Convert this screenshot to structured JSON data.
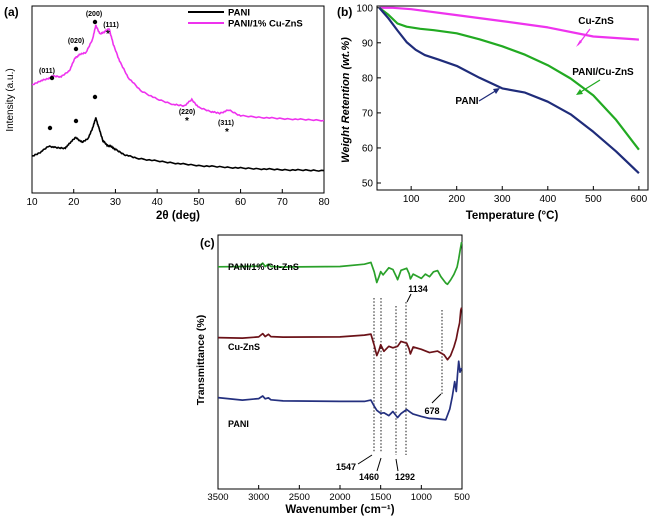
{
  "chart_data": [
    {
      "panel": "(a)",
      "type": "line",
      "title": "",
      "xlabel": "2θ (deg)",
      "ylabel": "Intensity (a.u.)",
      "xlim": [
        10,
        80
      ],
      "xticks": [
        "10",
        "20",
        "30",
        "40",
        "50",
        "60",
        "70",
        "80"
      ],
      "legend": [
        "PANI",
        "PANI/1% Cu-ZnS"
      ],
      "legend_position": "top-right",
      "colors": [
        "#000000",
        "#ee33ee"
      ],
      "series": [
        {
          "name": "PANI",
          "x": [
            10,
            12,
            14,
            16,
            18,
            19,
            20.5,
            22,
            23.5,
            24.5,
            25.3,
            26,
            27,
            28,
            29,
            30,
            32,
            35,
            40,
            45,
            50,
            55,
            60,
            65,
            70,
            75,
            80
          ],
          "y": [
            8.8,
            9.8,
            11.3,
            10.9,
            10.8,
            12.0,
            13.4,
            12.2,
            13.2,
            15.6,
            18.1,
            15.8,
            12.6,
            11.5,
            11.2,
            10.5,
            9.3,
            8.4,
            7.7,
            7.1,
            6.6,
            6.3,
            6.0,
            5.8,
            5.6,
            5.5,
            5.4
          ]
        },
        {
          "name": "PANI/1% Cu-ZnS",
          "x": [
            10,
            12,
            14,
            15,
            17,
            19,
            20.3,
            21.5,
            23,
            24.5,
            25.3,
            26.3,
            27.3,
            28.5,
            29.5,
            31,
            33,
            36,
            40,
            44,
            46.5,
            48.3,
            50,
            53,
            55,
            57.2,
            60,
            65,
            70,
            75,
            80
          ],
          "y": [
            26.0,
            27.0,
            27.6,
            28.2,
            28.0,
            29.5,
            32.5,
            33.4,
            33.9,
            37.0,
            40.4,
            38.3,
            38.8,
            39.6,
            35.8,
            31.8,
            27.9,
            24.7,
            22.6,
            21.3,
            21.0,
            22.5,
            20.6,
            19.6,
            19.2,
            20.0,
            18.6,
            18.2,
            17.9,
            17.7,
            17.5
          ]
        }
      ],
      "annotations": [
        "(011)",
        "(020)",
        "(200)",
        "(111)",
        "(220)",
        "(311)"
      ]
    },
    {
      "panel": "(b)",
      "type": "line",
      "title": "",
      "xlabel": "Temperature (°C)",
      "ylabel": "Weight Retention (wt.%)",
      "xlim": [
        25,
        620
      ],
      "ylim": [
        48,
        100.5
      ],
      "xticks": [
        "100",
        "200",
        "300",
        "400",
        "500",
        "600"
      ],
      "yticks": [
        "50",
        "60",
        "70",
        "80",
        "90",
        "100"
      ],
      "series": [
        {
          "name": "Cu-ZnS",
          "color": "#ee33ee",
          "x": [
            30,
            60,
            100,
            200,
            300,
            400,
            500,
            600
          ],
          "y": [
            100,
            100,
            99.6,
            97.9,
            96.2,
            94.4,
            91.8,
            90.9
          ]
        },
        {
          "name": "PANI/Cu-ZnS",
          "color": "#22aa22",
          "x": [
            30,
            50,
            70,
            90,
            120,
            150,
            200,
            250,
            300,
            350,
            400,
            450,
            500,
            550,
            600
          ],
          "y": [
            100,
            98,
            95.5,
            94.6,
            94.0,
            93.6,
            92.7,
            91.0,
            89.0,
            86.6,
            83.6,
            79.8,
            75.0,
            68.0,
            59.5
          ]
        },
        {
          "name": "PANI",
          "color": "#1f2c7a",
          "x": [
            30,
            50,
            70,
            90,
            110,
            130,
            160,
            200,
            250,
            300,
            350,
            400,
            450,
            500,
            550,
            600
          ],
          "y": [
            100,
            97,
            93.5,
            90.2,
            88.0,
            86.5,
            85.2,
            83.4,
            80.0,
            77.0,
            75.8,
            73.2,
            69.6,
            64.6,
            59.0,
            52.8
          ]
        }
      ],
      "annotations": [
        "Cu-ZnS",
        "PANI/Cu-ZnS",
        "PANI"
      ]
    },
    {
      "panel": "(c)",
      "type": "line",
      "title": "",
      "xlabel": "Wavenumber (cm⁻¹)",
      "ylabel": "Transmittance (%)",
      "xlim": [
        3500,
        500
      ],
      "xticks": [
        "3500",
        "3000",
        "2500",
        "2000",
        "1500",
        "1000",
        "500"
      ],
      "series": [
        {
          "name": "PANI/1% Cu-ZnS",
          "color": "#2aa12a",
          "x": [
            3500,
            3200,
            3000,
            2950,
            2920,
            2880,
            2850,
            2700,
            2000,
            1700,
            1620,
            1580,
            1547,
            1520,
            1500,
            1470,
            1400,
            1350,
            1300,
            1292,
            1250,
            1180,
            1150,
            1134,
            1100,
            1000,
            950,
            900,
            850,
            800,
            760,
            700,
            678,
            640,
            600,
            560,
            540,
            520,
            505
          ],
          "y": [
            87.5,
            87.6,
            87.7,
            88.9,
            87.6,
            88.5,
            87.6,
            87.4,
            87.6,
            88.5,
            89.2,
            85.5,
            81.3,
            83.6,
            85.6,
            84.3,
            87.1,
            86.4,
            83.1,
            82.4,
            86.1,
            86.9,
            84.8,
            82.7,
            84.6,
            82.9,
            84.6,
            83.6,
            85.5,
            86.0,
            83.6,
            81.1,
            80.6,
            82.3,
            84.5,
            87.4,
            90.6,
            94.6,
            97.2
          ]
        },
        {
          "name": "Cu-ZnS",
          "color": "#6b1218",
          "x": [
            3500,
            3200,
            3000,
            2950,
            2920,
            2880,
            2850,
            2700,
            2000,
            1700,
            1620,
            1580,
            1547,
            1520,
            1500,
            1460,
            1400,
            1350,
            1292,
            1250,
            1180,
            1150,
            1134,
            1100,
            1000,
            900,
            800,
            720,
            678,
            640,
            600,
            570,
            550,
            530,
            515,
            505
          ],
          "y": [
            59.6,
            59.4,
            59.9,
            61.2,
            60.0,
            60.9,
            60.0,
            59.8,
            59.9,
            60.6,
            61.0,
            56.6,
            52.5,
            54.6,
            56.8,
            54.2,
            56.2,
            55.6,
            56.2,
            58.1,
            57.4,
            55.1,
            53.2,
            55.9,
            55.0,
            53.7,
            54.3,
            52.8,
            50.9,
            52.5,
            55.9,
            59.1,
            62.4,
            65.4,
            70.4,
            71.4
          ]
        },
        {
          "name": "PANI",
          "color": "#24307f",
          "x": [
            3500,
            3200,
            3000,
            2950,
            2920,
            2880,
            2850,
            2700,
            2000,
            1700,
            1620,
            1580,
            1547,
            1500,
            1460,
            1400,
            1350,
            1292,
            1250,
            1180,
            1134,
            1100,
            1000,
            900,
            800,
            700,
            650,
            620,
            590,
            570,
            555,
            540,
            525,
            505
          ],
          "y": [
            36.0,
            35.0,
            35.6,
            36.6,
            35.5,
            35.9,
            35.1,
            34.7,
            34.5,
            34.5,
            35.0,
            32.6,
            31.0,
            29.8,
            30.0,
            28.9,
            30.5,
            28.1,
            29.7,
            31.3,
            30.2,
            29.5,
            28.6,
            27.8,
            27.6,
            27.2,
            31.5,
            36.2,
            42.3,
            38.4,
            45.0,
            50.3,
            46.0,
            47.6
          ]
        }
      ],
      "annotations": [
        "1134",
        "678",
        "1547",
        "1460",
        "1292"
      ],
      "curve_labels": [
        "PANI/1% Cu-ZnS",
        "Cu-ZnS",
        "PANI"
      ]
    }
  ]
}
